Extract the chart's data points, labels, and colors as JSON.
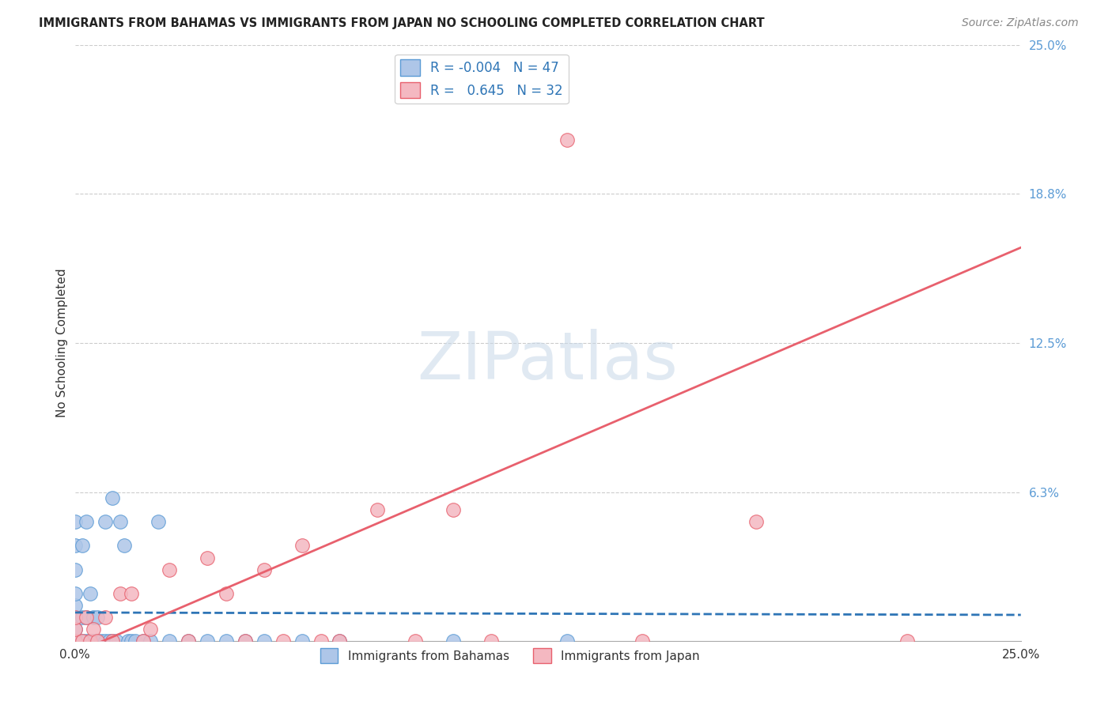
{
  "title": "IMMIGRANTS FROM BAHAMAS VS IMMIGRANTS FROM JAPAN NO SCHOOLING COMPLETED CORRELATION CHART",
  "source": "Source: ZipAtlas.com",
  "ylabel": "No Schooling Completed",
  "xlim": [
    0,
    0.25
  ],
  "ylim": [
    0,
    0.25
  ],
  "ytick_positions": [
    0.0625,
    0.125,
    0.1875,
    0.25
  ],
  "ytick_labels": [
    "6.3%",
    "12.5%",
    "18.8%",
    "25.0%"
  ],
  "grid_color": "#cccccc",
  "background_color": "#ffffff",
  "watermark_text": "ZIPatlas",
  "series_blue": {
    "name": "Immigrants from Bahamas",
    "R": -0.004,
    "N": 47,
    "color_fill": "#aec6e8",
    "color_edge": "#5b9bd5",
    "line_color": "#2e75b6",
    "line_style": "dashed",
    "x": [
      0.0,
      0.0,
      0.0,
      0.0,
      0.0,
      0.0,
      0.0,
      0.0,
      0.0,
      0.0,
      0.002,
      0.002,
      0.002,
      0.003,
      0.003,
      0.003,
      0.004,
      0.004,
      0.005,
      0.005,
      0.006,
      0.006,
      0.007,
      0.008,
      0.008,
      0.009,
      0.01,
      0.01,
      0.011,
      0.012,
      0.013,
      0.014,
      0.015,
      0.016,
      0.018,
      0.02,
      0.022,
      0.025,
      0.03,
      0.035,
      0.04,
      0.045,
      0.05,
      0.06,
      0.07,
      0.1,
      0.13
    ],
    "y": [
      0.0,
      0.0,
      0.0,
      0.005,
      0.01,
      0.015,
      0.02,
      0.03,
      0.04,
      0.05,
      0.0,
      0.01,
      0.04,
      0.0,
      0.01,
      0.05,
      0.0,
      0.02,
      0.0,
      0.01,
      0.0,
      0.01,
      0.0,
      0.0,
      0.05,
      0.0,
      0.0,
      0.06,
      0.0,
      0.05,
      0.04,
      0.0,
      0.0,
      0.0,
      0.0,
      0.0,
      0.05,
      0.0,
      0.0,
      0.0,
      0.0,
      0.0,
      0.0,
      0.0,
      0.0,
      0.0,
      0.0
    ],
    "trend_x": [
      0.0,
      0.25
    ],
    "trend_y": [
      0.012,
      0.011
    ]
  },
  "series_pink": {
    "name": "Immigrants from Japan",
    "R": 0.645,
    "N": 32,
    "color_fill": "#f4b8c1",
    "color_edge": "#e8606d",
    "line_color": "#e8606d",
    "line_style": "solid",
    "x": [
      0.0,
      0.0,
      0.0,
      0.002,
      0.003,
      0.004,
      0.005,
      0.006,
      0.008,
      0.01,
      0.012,
      0.015,
      0.018,
      0.02,
      0.025,
      0.03,
      0.035,
      0.04,
      0.045,
      0.05,
      0.055,
      0.06,
      0.065,
      0.07,
      0.08,
      0.09,
      0.1,
      0.11,
      0.13,
      0.15,
      0.18,
      0.22
    ],
    "y": [
      0.0,
      0.005,
      0.01,
      0.0,
      0.01,
      0.0,
      0.005,
      0.0,
      0.01,
      0.0,
      0.02,
      0.02,
      0.0,
      0.005,
      0.03,
      0.0,
      0.035,
      0.02,
      0.0,
      0.03,
      0.0,
      0.04,
      0.0,
      0.0,
      0.055,
      0.0,
      0.055,
      0.0,
      0.21,
      0.0,
      0.05,
      0.0
    ],
    "trend_x": [
      0.0,
      0.25
    ],
    "trend_y": [
      -0.005,
      0.165
    ]
  },
  "legend_R_blue": "-0.004",
  "legend_N_blue": "47",
  "legend_R_pink": "0.645",
  "legend_N_pink": "32"
}
